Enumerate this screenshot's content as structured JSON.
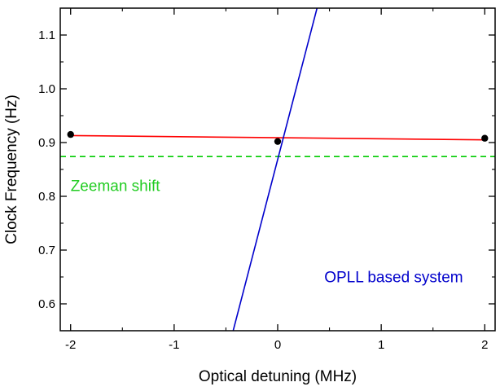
{
  "chart_data": {
    "type": "line",
    "xlabel": "Optical detuning (MHz)",
    "ylabel": "Clock Frequency (Hz)",
    "xlim": [
      -2.1,
      2.1
    ],
    "ylim": [
      0.55,
      1.15
    ],
    "x_ticks": [
      -2,
      -1,
      0,
      1,
      2
    ],
    "x_tick_labels": [
      "-2",
      "-1",
      "0",
      "1",
      "2"
    ],
    "y_ticks": [
      0.6,
      0.7,
      0.8,
      0.9,
      1.0,
      1.1
    ],
    "y_tick_labels": [
      "0.6",
      "0.7",
      "0.8",
      "0.9",
      "1.0",
      "1.1"
    ],
    "grid": false,
    "series": [
      {
        "kind": "scatter",
        "color": "#000000",
        "x": [
          -2,
          0,
          2
        ],
        "y": [
          0.915,
          0.902,
          0.908
        ]
      },
      {
        "kind": "line",
        "color": "#ff0000",
        "style": "solid",
        "x": [
          -2,
          2
        ],
        "y": [
          0.913,
          0.905
        ]
      },
      {
        "kind": "line",
        "color": "#00cc00",
        "style": "dashed",
        "x": [
          -2.1,
          2.1
        ],
        "y": [
          0.874,
          0.874
        ]
      },
      {
        "kind": "line",
        "color": "#0000cc",
        "style": "solid",
        "x": [
          -0.43,
          0.38
        ],
        "y": [
          0.55,
          1.15
        ]
      }
    ],
    "annotations": [
      {
        "text": "Zeeman shift",
        "color": "#22cc22",
        "x": -2.0,
        "y": 0.81
      },
      {
        "text": "OPLL based system",
        "color": "#0000cc",
        "x": 0.45,
        "y": 0.64
      }
    ]
  }
}
